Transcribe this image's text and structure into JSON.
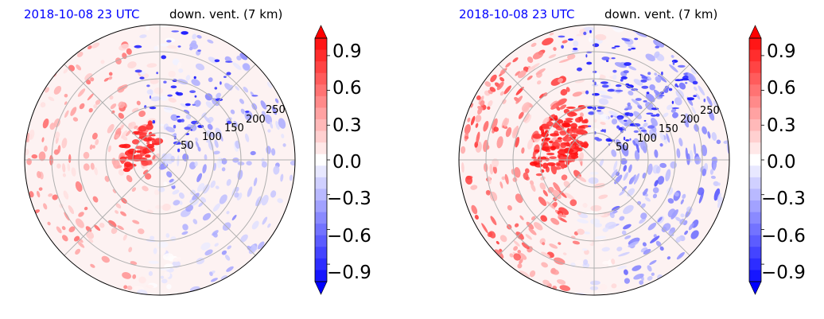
{
  "chart_data": [
    {
      "type": "heatmap",
      "projection": "polar",
      "title_left": "2018-10-08 23 UTC",
      "title_right": "down. vent. (7 km)",
      "title_left_color": "#0000ff",
      "radial_tick_labels": [
        "50",
        "100",
        "150",
        "200",
        "250"
      ],
      "colorbar": {
        "ticks": [
          "0.9",
          "0.6",
          "0.3",
          "0.0",
          "−0.3",
          "−0.6",
          "−0.9"
        ],
        "range": [
          -1.05,
          1.05
        ],
        "extend": "both",
        "cmap": "bwr"
      },
      "grid": true
    },
    {
      "type": "heatmap",
      "projection": "polar",
      "title_left": "2018-10-08 23 UTC",
      "title_right": "down. vent. (7 km)",
      "title_left_color": "#0000ff",
      "radial_tick_labels": [
        "50",
        "100",
        "150",
        "200",
        "250"
      ],
      "colorbar": {
        "ticks": [
          "0.9",
          "0.6",
          "0.3",
          "0.0",
          "−0.3",
          "−0.6",
          "−0.9"
        ],
        "range": [
          -1.05,
          1.05
        ],
        "extend": "both",
        "cmap": "bwr"
      },
      "grid": true
    }
  ]
}
